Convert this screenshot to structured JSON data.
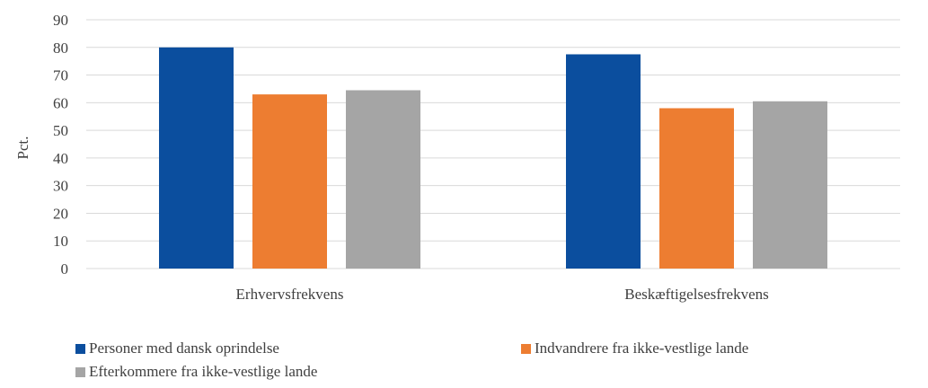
{
  "chart_data": {
    "type": "bar",
    "categories": [
      "Erhvervsfrekvens",
      "Beskæftigelsesfrekvens"
    ],
    "series": [
      {
        "name": "Personer med dansk oprindelse",
        "values": [
          80,
          77.5
        ],
        "color": "#0B4E9E"
      },
      {
        "name": "Indvandrere fra ikke-vestlige lande",
        "values": [
          63,
          58
        ],
        "color": "#ED7D31"
      },
      {
        "name": "Efterkommere fra ikke-vestlige lande",
        "values": [
          64.5,
          60.5
        ],
        "color": "#A5A5A5"
      }
    ],
    "title": "",
    "xlabel": "",
    "ylabel": "Pct.",
    "ylim": [
      0,
      90
    ],
    "yticks": [
      0,
      10,
      20,
      30,
      40,
      50,
      60,
      70,
      80,
      90
    ],
    "grid": true,
    "legend_position": "bottom"
  }
}
